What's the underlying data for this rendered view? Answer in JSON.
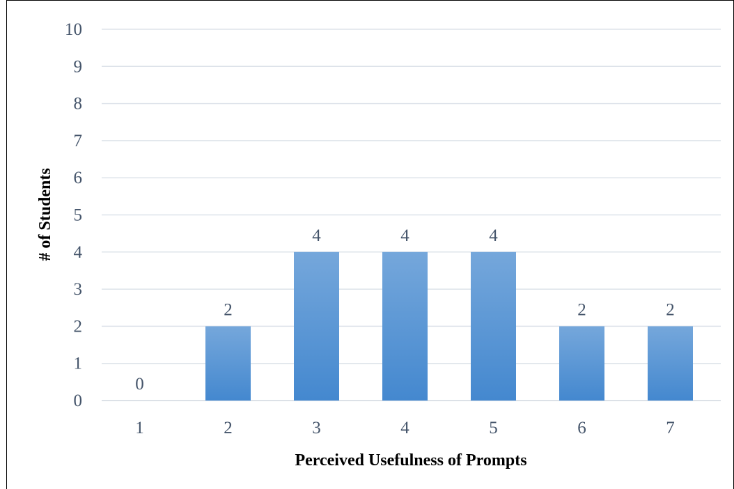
{
  "chart_data": {
    "type": "bar",
    "categories": [
      "1",
      "2",
      "3",
      "4",
      "5",
      "6",
      "7"
    ],
    "values": [
      0,
      2,
      4,
      4,
      4,
      2,
      2
    ],
    "data_labels": [
      "0",
      "2",
      "4",
      "4",
      "4",
      "2",
      "2"
    ],
    "title": "",
    "xlabel": "Perceived Usefulness of Prompts",
    "ylabel": "# of Students",
    "ylim": [
      0,
      10
    ],
    "yticks": [
      "0",
      "1",
      "2",
      "3",
      "4",
      "5",
      "6",
      "7",
      "8",
      "9",
      "10"
    ],
    "grid": true,
    "legend": "none",
    "colors": {
      "bar_top": "#75a7db",
      "bar_bottom": "#4488cf",
      "gridline": "#dde3ea",
      "baseline": "#d0d7df",
      "tick_text": "#44546a",
      "title_text": "#000000"
    }
  }
}
